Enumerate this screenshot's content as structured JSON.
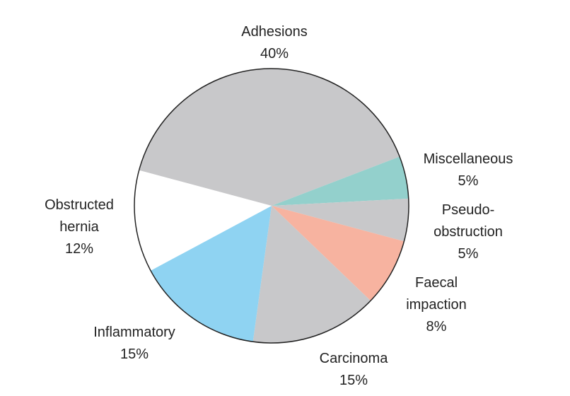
{
  "chart_data": {
    "type": "pie",
    "categories": [
      "Adhesions",
      "Miscellaneous",
      "Pseudo-obstruction",
      "Faecal impaction",
      "Carcinoma",
      "Inflammatory",
      "Obstructed hernia"
    ],
    "values": [
      40,
      5,
      5,
      8,
      15,
      15,
      12
    ],
    "value_labels": [
      "40%",
      "5%",
      "5%",
      "8%",
      "15%",
      "15%",
      "12%"
    ],
    "colors": [
      "#c8c8ca",
      "#93d0cc",
      "#c8c8ca",
      "#f7b3a0",
      "#c8c8ca",
      "#8fd3f2",
      "#ffffff"
    ]
  }
}
